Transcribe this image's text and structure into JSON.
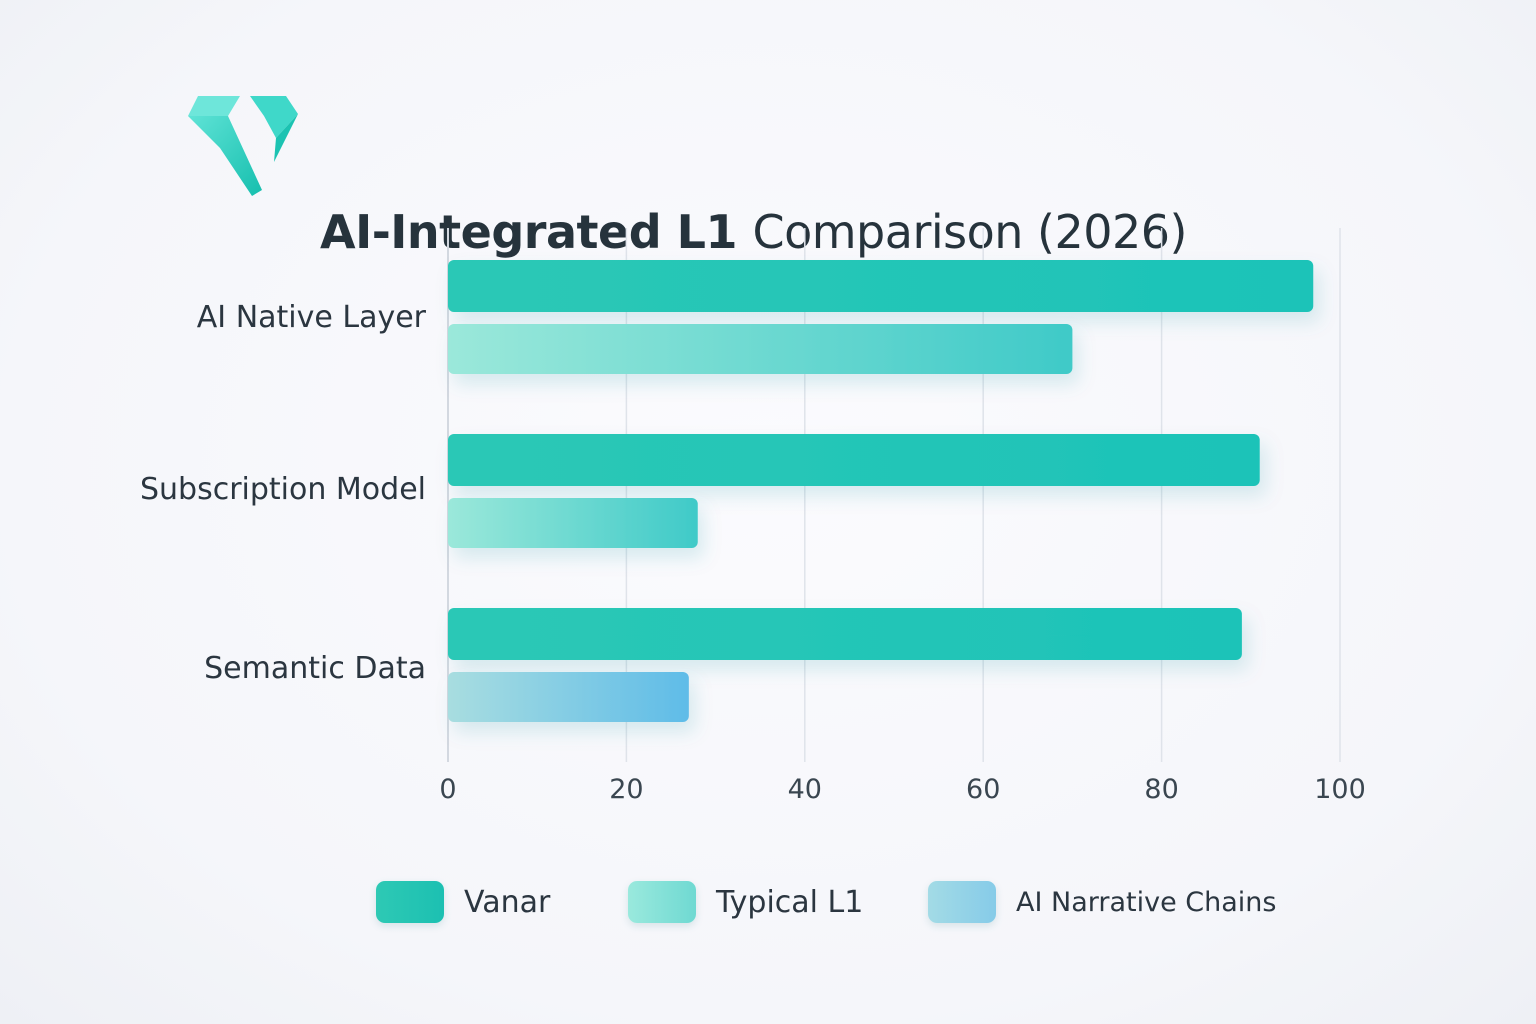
{
  "header": {
    "title_bold": "AI-Integrated L1",
    "title_regular": "Comparison (2026)"
  },
  "colors": {
    "vanar": "#1fc3b2",
    "typical_l1": "#5fd6cc",
    "ai_narrative_chains": "#86cbe6",
    "logo": "#26cfc0",
    "grid": "#dfe3ea"
  },
  "chart_data": {
    "type": "bar",
    "orientation": "horizontal",
    "title": "AI-Integrated L1 Comparison (2026)",
    "categories": [
      "AI Native Layer",
      "Subscription Model",
      "Semantic Data"
    ],
    "series": [
      {
        "name": "Vanar",
        "values": [
          97,
          91,
          89
        ]
      },
      {
        "name": "Typical L1",
        "values": [
          70,
          28,
          null
        ]
      },
      {
        "name": "AI Narrative Chains",
        "values": [
          null,
          null,
          27
        ]
      }
    ],
    "xlim": [
      0,
      100
    ],
    "xticks": [
      0,
      20,
      40,
      60,
      80,
      100
    ],
    "xlabel": "",
    "ylabel": "",
    "grid": true,
    "legend": {
      "position": "bottom",
      "entries": [
        "Vanar",
        "Typical L1",
        "AI Narrative Chains"
      ]
    }
  }
}
